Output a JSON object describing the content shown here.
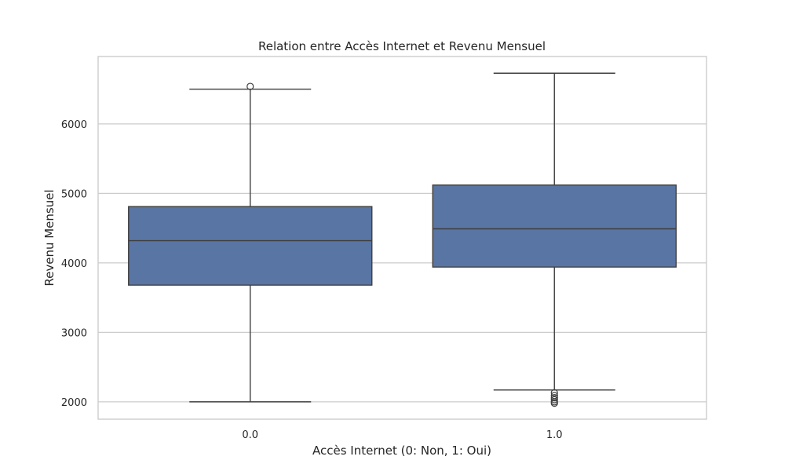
{
  "chart_data": {
    "type": "box",
    "title": "Relation entre Accès Internet et Revenu Mensuel",
    "xlabel": "Accès Internet (0: Non, 1: Oui)",
    "ylabel": "Revenu Mensuel",
    "categories": [
      "0.0",
      "1.0"
    ],
    "ylim": [
      1750,
      6970
    ],
    "yticks": [
      2000,
      3000,
      4000,
      5000,
      6000
    ],
    "grid": true,
    "box_color": "#5975a4",
    "line_color": "#3f3f3f",
    "boxes": [
      {
        "category": "0.0",
        "whisker_low": 2000,
        "q1": 3680,
        "median": 4320,
        "q3": 4810,
        "whisker_high": 6500,
        "fliers": [
          6540
        ]
      },
      {
        "category": "1.0",
        "whisker_low": 2170,
        "q1": 3940,
        "median": 4490,
        "q3": 5120,
        "whisker_high": 6730,
        "fliers": [
          2130,
          2090,
          2060,
          2030,
          2000,
          1980
        ]
      }
    ]
  }
}
